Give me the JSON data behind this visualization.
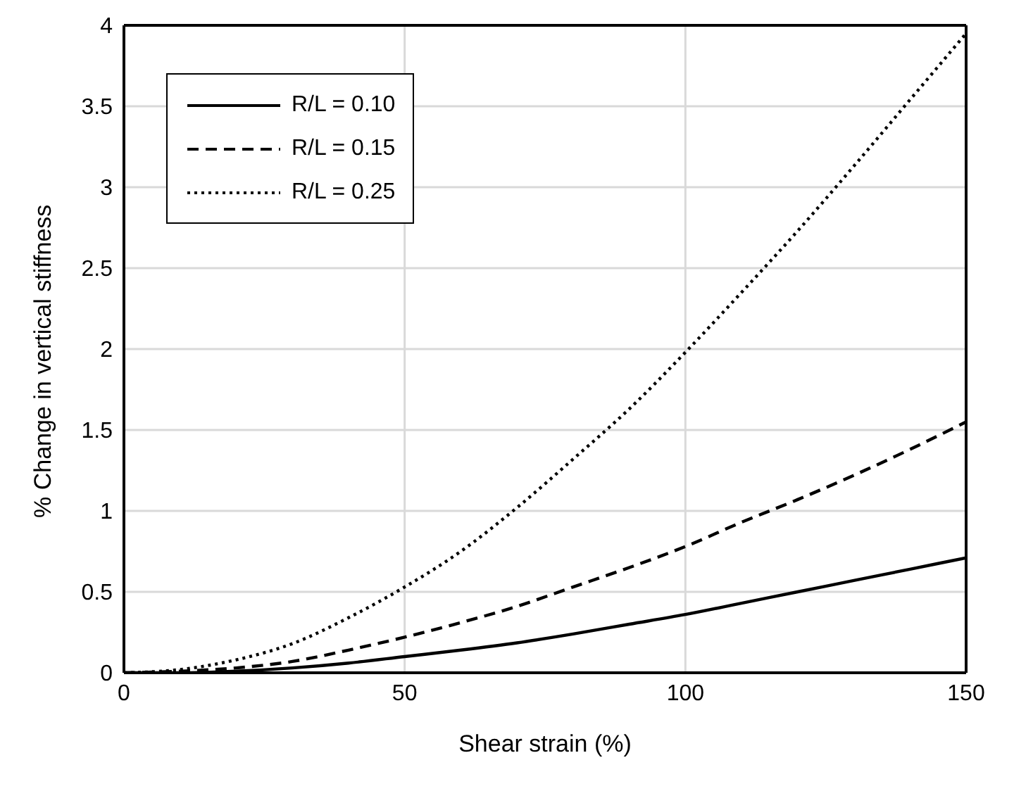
{
  "chart_data": {
    "type": "line",
    "xlabel": "Shear strain (%)",
    "ylabel": "% Change in vertical stiffness",
    "x": [
      0,
      10,
      20,
      30,
      40,
      50,
      60,
      70,
      80,
      90,
      100,
      110,
      120,
      130,
      140,
      150
    ],
    "series": [
      {
        "name": "R/L = 0.10",
        "color": "#000000",
        "line_style": "solid",
        "values": [
          0,
          0,
          0.01,
          0.03,
          0.06,
          0.1,
          0.14,
          0.185,
          0.24,
          0.3,
          0.36,
          0.43,
          0.5,
          0.57,
          0.64,
          0.71
        ]
      },
      {
        "name": "R/L = 0.15",
        "color": "#000000",
        "line_style": "dashed",
        "values": [
          0,
          0.01,
          0.03,
          0.07,
          0.14,
          0.22,
          0.31,
          0.41,
          0.53,
          0.65,
          0.78,
          0.93,
          1.07,
          1.22,
          1.38,
          1.55
        ]
      },
      {
        "name": "R/L = 0.25",
        "color": "#000000",
        "line_style": "dotted",
        "values": [
          0,
          0.02,
          0.08,
          0.18,
          0.34,
          0.53,
          0.75,
          1.02,
          1.32,
          1.63,
          1.98,
          2.35,
          2.73,
          3.13,
          3.54,
          3.95
        ]
      }
    ],
    "xlim": [
      0,
      150
    ],
    "xticks": [
      0,
      50,
      100,
      150
    ],
    "ylim": [
      0,
      4
    ],
    "yticks": [
      0,
      0.5,
      1,
      1.5,
      2,
      2.5,
      3,
      3.5,
      4
    ],
    "grid": true,
    "legend": "top left",
    "marker": "none"
  }
}
